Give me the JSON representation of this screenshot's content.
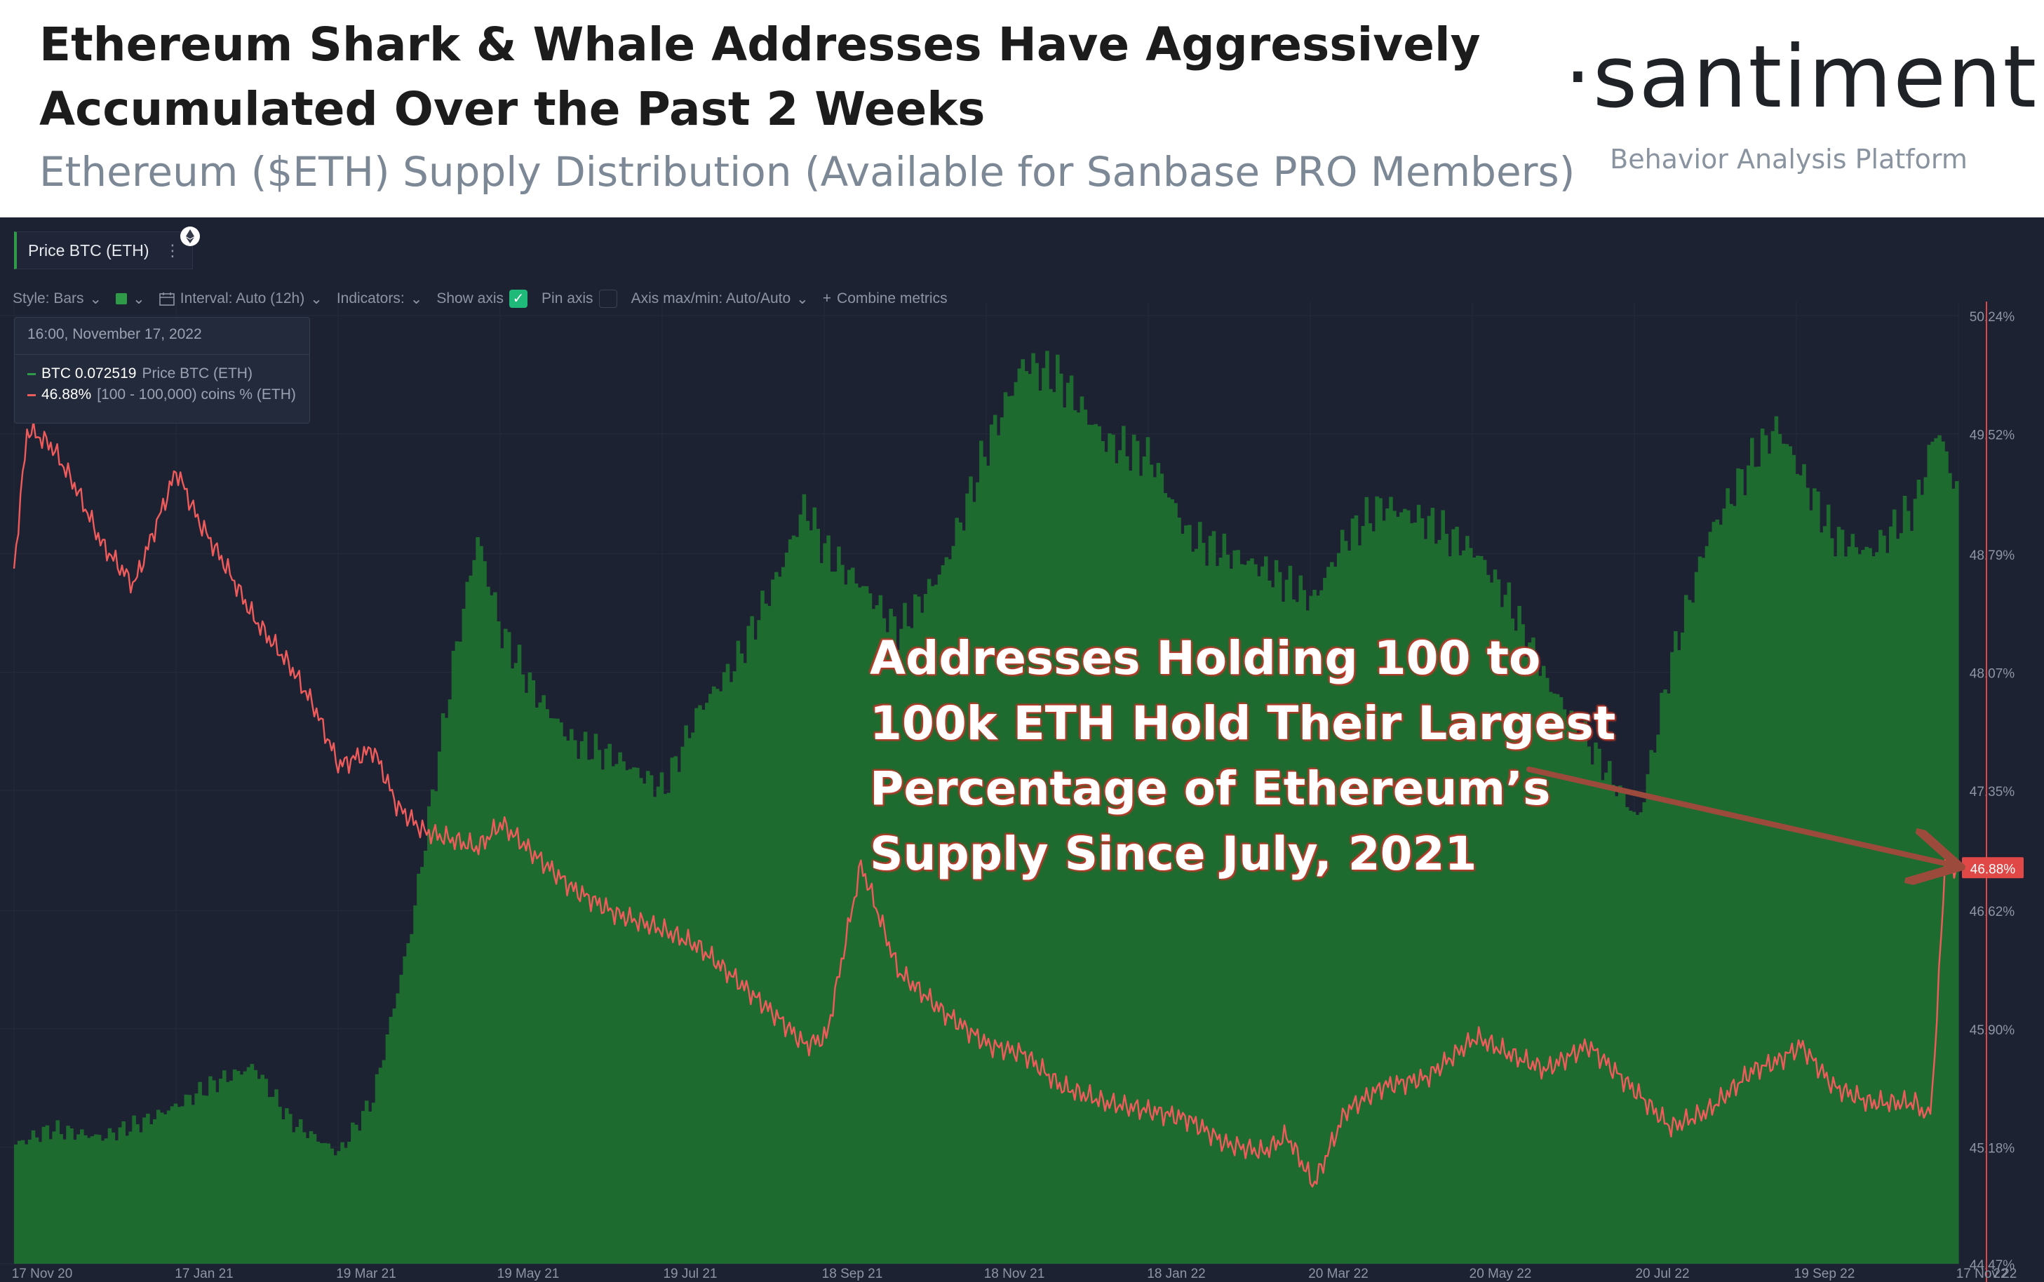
{
  "header": {
    "title": "Ethereum Shark & Whale Addresses Have Aggressively Accumulated Over the Past 2 Weeks",
    "subtitle": "Ethereum ($ETH) Supply Distribution (Available for Sanbase PRO Members)",
    "logo": "·santiment·",
    "logo_tagline": "Behavior Analysis Platform"
  },
  "toolbar": {
    "metric_tab": "Price BTC (ETH)",
    "metric_menu": "⋮",
    "style": "Style: Bars",
    "interval": "Interval: Auto (12h)",
    "indicators": "Indicators:",
    "show_axis": "Show axis",
    "pin_axis": "Pin axis",
    "axis_minmax": "Axis max/min: Auto/Auto",
    "combine": "Combine metrics",
    "dropdown_glyph": "⌄",
    "check_glyph": "✓",
    "plus_glyph": "+"
  },
  "tooltip": {
    "date": "16:00, November 17, 2022",
    "rows": [
      {
        "value": "BTC 0.072519",
        "label": "Price BTC (ETH)",
        "color": "#2f9a47"
      },
      {
        "value": "46.88%",
        "label": "[100 - 100,000) coins % (ETH)",
        "color": "#ef5b5b"
      }
    ]
  },
  "annotation": {
    "lines": [
      "Addresses Holding 100 to",
      "100k ETH Hold Their Largest",
      "Percentage of Ethereum’s",
      "Supply Since July, 2021"
    ]
  },
  "colors": {
    "background": "#1d2232",
    "bars": "#1e6b30",
    "bar_edge": "#2f9a47",
    "line": "#ef5b5b",
    "arrow": "#9c4a3c",
    "current_badge": "#e04848"
  },
  "chart_data": {
    "type": "bar",
    "x_tick_labels": [
      "17 Nov 20",
      "17 Jan 21",
      "19 Mar 21",
      "19 May 21",
      "19 Jul 21",
      "18 Sep 21",
      "18 Nov 21",
      "18 Jan 22",
      "20 Mar 22",
      "20 May 22",
      "20 Jul 22",
      "19 Sep 22",
      "17 Nov 22",
      "22"
    ],
    "x_range": [
      "2020-11-17",
      "2022-11-17"
    ],
    "right_axis": {
      "ticks": [
        "50.24%",
        "49.52%",
        "48.79%",
        "48.07%",
        "47.35%",
        "46.62%",
        "45.90%",
        "45.18%",
        "44.47%"
      ],
      "ylim": [
        44.47,
        50.24
      ],
      "current_label": "46.88%",
      "current": 46.88
    },
    "series": [
      {
        "name": "Price BTC (ETH)",
        "type": "bar",
        "x": [
          "2020-11-17",
          "2020-12-01",
          "2020-12-20",
          "2021-01-05",
          "2021-01-17",
          "2021-02-01",
          "2021-02-15",
          "2021-03-01",
          "2021-03-19",
          "2021-04-01",
          "2021-04-15",
          "2021-05-01",
          "2021-05-10",
          "2021-05-19",
          "2021-06-01",
          "2021-06-15",
          "2021-07-01",
          "2021-07-19",
          "2021-08-01",
          "2021-08-15",
          "2021-09-01",
          "2021-09-10",
          "2021-09-18",
          "2021-10-01",
          "2021-10-15",
          "2021-11-01",
          "2021-11-18",
          "2021-12-01",
          "2021-12-15",
          "2022-01-01",
          "2022-01-18",
          "2022-02-01",
          "2022-02-15",
          "2022-03-01",
          "2022-03-20",
          "2022-04-01",
          "2022-04-15",
          "2022-05-01",
          "2022-05-20",
          "2022-06-01",
          "2022-06-15",
          "2022-07-01",
          "2022-07-20",
          "2022-08-01",
          "2022-08-15",
          "2022-09-01",
          "2022-09-10",
          "2022-09-19",
          "2022-10-01",
          "2022-10-15",
          "2022-11-01",
          "2022-11-09",
          "2022-11-17"
        ],
        "values": [
          0.0315,
          0.0325,
          0.032,
          0.033,
          0.034,
          0.0355,
          0.0365,
          0.033,
          0.031,
          0.0345,
          0.045,
          0.062,
          0.07,
          0.064,
          0.06,
          0.057,
          0.056,
          0.054,
          0.059,
          0.062,
          0.068,
          0.072,
          0.069,
          0.067,
          0.064,
          0.068,
          0.076,
          0.081,
          0.08,
          0.076,
          0.075,
          0.07,
          0.069,
          0.068,
          0.066,
          0.07,
          0.072,
          0.071,
          0.069,
          0.066,
          0.061,
          0.057,
          0.052,
          0.062,
          0.07,
          0.075,
          0.077,
          0.074,
          0.07,
          0.069,
          0.072,
          0.077,
          0.0725
        ],
        "color": "#1e6b30"
      },
      {
        "name": "[100 - 100,000) coins % (ETH)",
        "type": "line",
        "x": [
          "2020-11-17",
          "2020-11-22",
          "2020-12-01",
          "2020-12-10",
          "2020-12-20",
          "2021-01-01",
          "2021-01-17",
          "2021-01-25",
          "2021-02-05",
          "2021-02-15",
          "2021-03-01",
          "2021-03-10",
          "2021-03-19",
          "2021-04-01",
          "2021-04-10",
          "2021-04-20",
          "2021-05-01",
          "2021-05-10",
          "2021-05-19",
          "2021-06-01",
          "2021-06-15",
          "2021-07-01",
          "2021-07-19",
          "2021-08-01",
          "2021-08-15",
          "2021-09-01",
          "2021-09-10",
          "2021-09-18",
          "2021-10-01",
          "2021-10-15",
          "2021-11-01",
          "2021-11-18",
          "2021-12-01",
          "2021-12-15",
          "2022-01-01",
          "2022-01-18",
          "2022-02-01",
          "2022-02-15",
          "2022-03-01",
          "2022-03-10",
          "2022-03-20",
          "2022-04-01",
          "2022-04-15",
          "2022-05-01",
          "2022-05-20",
          "2022-06-01",
          "2022-06-15",
          "2022-07-01",
          "2022-07-20",
          "2022-08-01",
          "2022-08-15",
          "2022-09-01",
          "2022-09-10",
          "2022-09-19",
          "2022-10-01",
          "2022-10-15",
          "2022-11-01",
          "2022-11-06",
          "2022-11-08",
          "2022-11-10",
          "2022-11-12",
          "2022-11-14",
          "2022-11-17"
        ],
        "values": [
          48.7,
          49.55,
          49.45,
          49.2,
          48.85,
          48.6,
          49.3,
          49.0,
          48.7,
          48.4,
          48.1,
          47.85,
          47.5,
          47.6,
          47.25,
          47.1,
          47.05,
          47.0,
          47.15,
          46.95,
          46.75,
          46.6,
          46.5,
          46.4,
          46.2,
          45.95,
          45.8,
          45.85,
          46.9,
          46.25,
          46.0,
          45.8,
          45.75,
          45.55,
          45.45,
          45.4,
          45.35,
          45.2,
          45.15,
          45.25,
          44.95,
          45.4,
          45.55,
          45.6,
          45.85,
          45.75,
          45.65,
          45.8,
          45.5,
          45.3,
          45.4,
          45.65,
          45.7,
          45.8,
          45.55,
          45.45,
          45.45,
          45.35,
          45.7,
          46.3,
          46.95,
          46.88,
          46.88
        ],
        "color": "#ef5b5b"
      }
    ]
  }
}
